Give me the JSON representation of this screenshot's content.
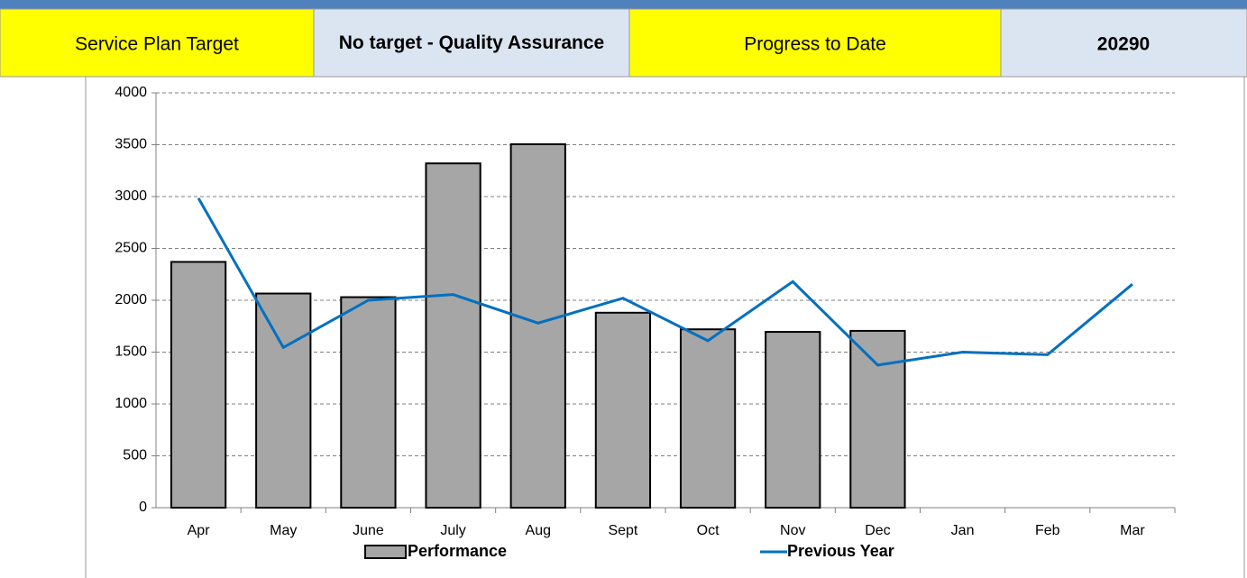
{
  "header": {
    "cells": [
      "Service Plan Target",
      "No target - Quality Assurance",
      "Progress to Date",
      20290
    ]
  },
  "chart_data": {
    "type": "bar",
    "categories": [
      "Apr",
      "May",
      "June",
      "July",
      "Aug",
      "Sept",
      "Oct",
      "Nov",
      "Dec",
      "Jan",
      "Feb",
      "Mar"
    ],
    "series": [
      {
        "name": "Performance",
        "type": "bar",
        "color": "#a6a6a6",
        "values": [
          2370,
          2065,
          2030,
          3320,
          3505,
          1880,
          1720,
          1695,
          1705,
          null,
          null,
          null
        ]
      },
      {
        "name": "Previous Year",
        "type": "line",
        "color": "#0070c0",
        "values": [
          2985,
          1545,
          2000,
          2055,
          1780,
          2020,
          1610,
          2180,
          1375,
          1500,
          1475,
          2155
        ]
      }
    ],
    "ylim": [
      0,
      4000
    ],
    "yticks": [
      0,
      500,
      1000,
      1500,
      2000,
      2500,
      3000,
      3500,
      4000
    ],
    "grid": true,
    "legend": "bottom"
  }
}
